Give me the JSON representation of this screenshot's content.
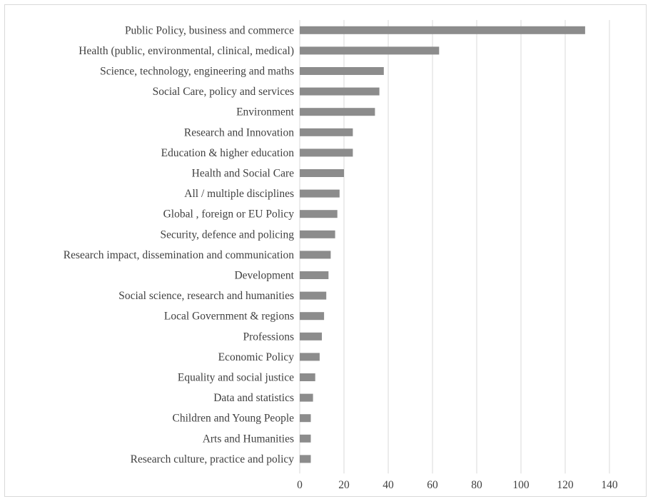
{
  "chart_data": {
    "type": "bar",
    "orientation": "horizontal",
    "categories": [
      "Public Policy, business and commerce",
      "Health (public, environmental, clinical, medical)",
      "Science, technology, engineering and maths",
      "Social Care, policy and services",
      "Environment",
      "Research and Innovation",
      "Education & higher education",
      "Health and Social Care",
      "All / multiple disciplines",
      "Global , foreign or EU Policy",
      "Security, defence and policing",
      "Research impact, dissemination and communication",
      "Development",
      "Social science, research and humanities",
      "Local Government & regions",
      "Professions",
      "Economic Policy",
      "Equality and social justice",
      "Data and statistics",
      "Children and Young People",
      "Arts and Humanities",
      "Research culture, practice and policy"
    ],
    "values": [
      129,
      63,
      38,
      36,
      34,
      24,
      24,
      20,
      18,
      17,
      16,
      14,
      13,
      12,
      11,
      10,
      9,
      7,
      6,
      5,
      5,
      5
    ],
    "xlim": [
      0,
      140
    ],
    "xticks": [
      0,
      20,
      40,
      60,
      80,
      100,
      120,
      140
    ],
    "grid": "vertical",
    "legend": "none",
    "bar_color": "#8c8c8c",
    "title": "",
    "xlabel": "",
    "ylabel": ""
  }
}
